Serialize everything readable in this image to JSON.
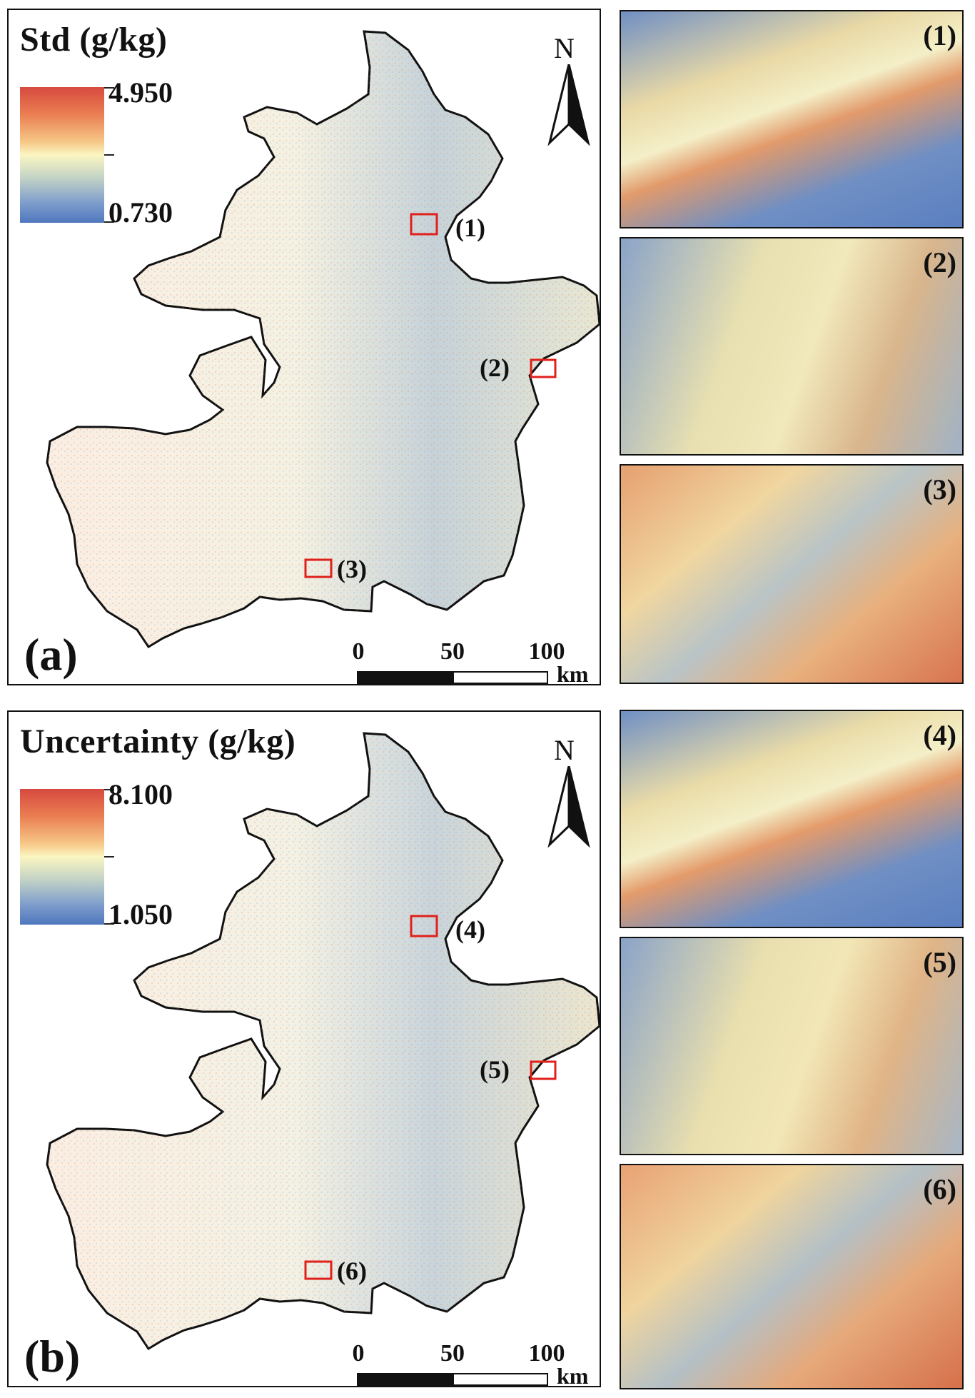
{
  "panel_a": {
    "title": "Std (g/kg)",
    "legend_max": "4.950",
    "legend_min": "0.730",
    "letter": "(a)",
    "north": "N",
    "scale_labels": [
      "0",
      "50",
      "100"
    ],
    "scale_unit": "km",
    "boxes": [
      "(1)",
      "(2)",
      "(3)"
    ]
  },
  "panel_b": {
    "title": "Uncertainty (g/kg)",
    "legend_max": "8.100",
    "legend_min": "1.050",
    "letter": "(b)",
    "north": "N",
    "scale_labels": [
      "0",
      "50",
      "100"
    ],
    "scale_unit": "km",
    "boxes": [
      "(4)",
      "(5)",
      "(6)"
    ]
  },
  "insets": [
    "(1)",
    "(2)",
    "(3)",
    "(4)",
    "(5)",
    "(6)"
  ],
  "colors": {
    "high": "#d64a3f",
    "mid": "#fbf6c2",
    "low": "#4f77be",
    "box": "#e0201b"
  }
}
